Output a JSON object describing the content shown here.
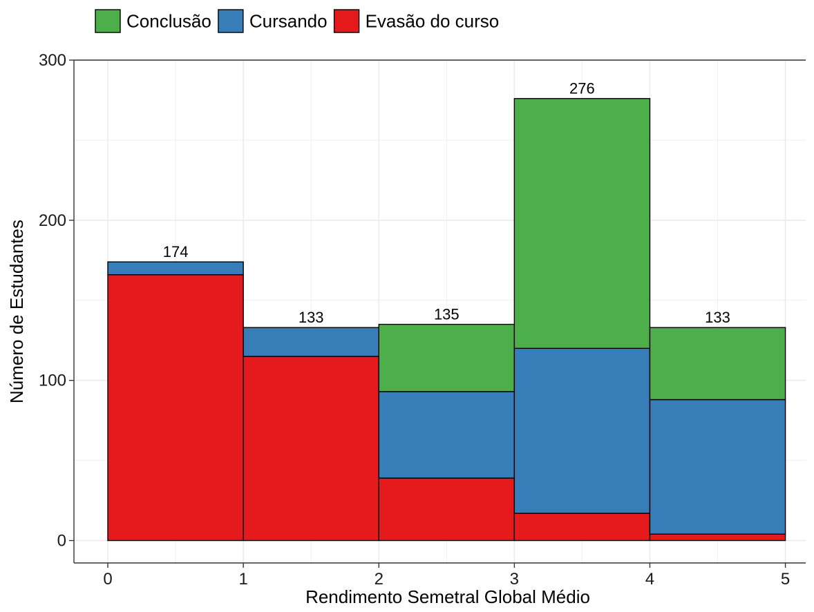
{
  "chart_data": {
    "type": "bar",
    "subtype": "stacked-histogram",
    "title": "",
    "xlabel": "Rendimento Semetral Global Médio",
    "ylabel": "Número de Estudantes",
    "xlim": [
      -0.25,
      5.15
    ],
    "ylim": [
      -14,
      300
    ],
    "x_ticks": [
      0,
      1,
      2,
      3,
      4,
      5
    ],
    "y_ticks": [
      0,
      100,
      200,
      300
    ],
    "bins": [
      [
        0,
        1
      ],
      [
        1,
        2
      ],
      [
        2,
        3
      ],
      [
        3,
        4
      ],
      [
        4,
        5
      ]
    ],
    "series": [
      {
        "name": "Evasão do curso",
        "color": "#E41A1C",
        "values": [
          166,
          115,
          39,
          17,
          4
        ]
      },
      {
        "name": "Cursando",
        "color": "#377EB8",
        "values": [
          8,
          18,
          54,
          103,
          84
        ]
      },
      {
        "name": "Conclusão",
        "color": "#4DAF4A",
        "values": [
          0,
          0,
          42,
          156,
          45
        ]
      }
    ],
    "totals": [
      "174",
      "133",
      "135",
      "276",
      "133"
    ],
    "legend": {
      "position": "top",
      "order": [
        "Conclusão",
        "Cursando",
        "Evasão do curso"
      ]
    },
    "grid": true,
    "colors": {
      "grid": "#ebebeb",
      "axis": "#333333",
      "bar_outline": "#000000"
    }
  }
}
